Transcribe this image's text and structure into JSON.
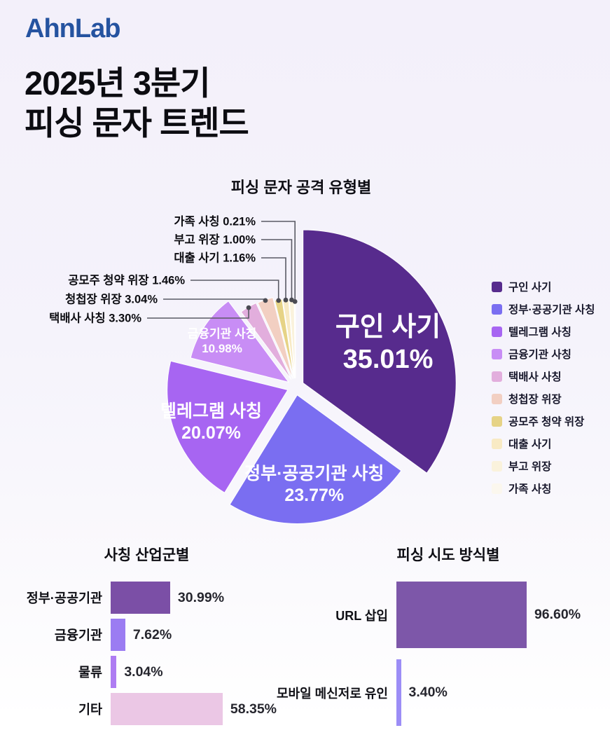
{
  "header": {
    "logo": "AhnLab",
    "title_line1": "2025년 3분기",
    "title_line2": "피싱 문자 트렌드"
  },
  "theme": {
    "logo_color": "#2553a0",
    "background_top": "#f3f0fa",
    "background_bottom": "#ffffff",
    "leader_line_color": "#5a5a64",
    "leader_dot_color": "#4a4a52",
    "pie_label_color": "#ffffff",
    "text_color": "#0c0c11"
  },
  "chart_data": [
    {
      "id": "attack-type-pie",
      "type": "pie",
      "title": "피싱 문자 공격 유형별",
      "legend_position": "right",
      "start_angle_deg": 0,
      "direction": "clockwise",
      "slices": [
        {
          "label": "구인 사기",
          "value": 35.01,
          "color": "#572b8d",
          "label_style": "inside-large"
        },
        {
          "label": "정부·공공기관 사칭",
          "value": 23.77,
          "color": "#7a6ef1",
          "label_style": "inside"
        },
        {
          "label": "텔레그램 사칭",
          "value": 20.07,
          "color": "#a765f2",
          "label_style": "inside"
        },
        {
          "label": "금융기관 사칭",
          "value": 10.98,
          "color": "#c88df5",
          "label_style": "inside-small"
        },
        {
          "label": "택배사 사칭",
          "value": 3.3,
          "color": "#e2aedd",
          "label_style": "leader"
        },
        {
          "label": "청첩장 위장",
          "value": 3.04,
          "color": "#f2cfc2",
          "label_style": "leader"
        },
        {
          "label": "공모주 청약 위장",
          "value": 1.46,
          "color": "#e6d386",
          "label_style": "leader"
        },
        {
          "label": "대출 사기",
          "value": 1.16,
          "color": "#f8eac4",
          "label_style": "leader"
        },
        {
          "label": "부고 위장",
          "value": 1.0,
          "color": "#faf2dc",
          "label_style": "leader"
        },
        {
          "label": "가족 사칭",
          "value": 0.21,
          "color": "#fbf7ee",
          "label_style": "leader"
        }
      ]
    },
    {
      "id": "impersonated-industry-bar",
      "type": "bar",
      "title": "사칭 산업군별",
      "orientation": "horizontal",
      "categories": [
        "정부·공공기관",
        "금융기관",
        "물류",
        "기타"
      ],
      "values": [
        30.99,
        7.62,
        3.04,
        58.35
      ],
      "colors": [
        "#7b4fa6",
        "#9b7cf2",
        "#ae7cf2",
        "#ebc7e5"
      ],
      "value_suffix": "%"
    },
    {
      "id": "phishing-method-bar",
      "type": "bar",
      "title": "피싱 시도 방식별",
      "orientation": "horizontal",
      "categories": [
        "URL 삽입",
        "모바일 메신저로 유인"
      ],
      "values": [
        96.6,
        3.4
      ],
      "colors": [
        "#7d57a9",
        "#9c8df6"
      ],
      "value_suffix": "%"
    }
  ]
}
